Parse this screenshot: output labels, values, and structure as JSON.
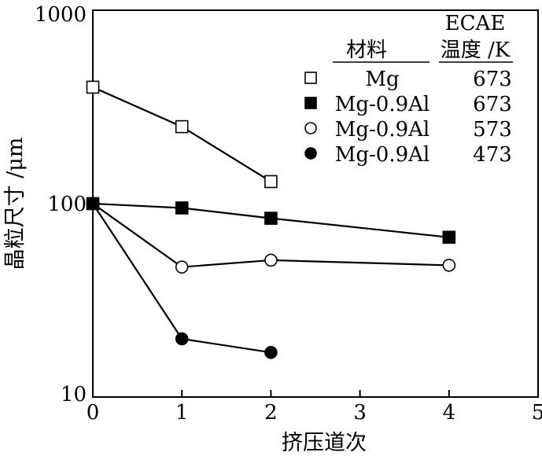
{
  "chart_data": {
    "type": "scatter",
    "title": "",
    "xlabel": "挤压道次",
    "ylabel": "晶粒尺寸 /μm",
    "xlim": [
      0,
      5
    ],
    "ylim": [
      10,
      1000
    ],
    "yscale": "log",
    "grid": false,
    "x_ticks": [
      "0",
      "1",
      "2",
      "3",
      "4",
      "5"
    ],
    "y_ticks": [
      "10",
      "100",
      "1000"
    ],
    "legend": {
      "placement": "top-right",
      "header_material": "材料",
      "header_temp_top": "ECAE",
      "header_temp_bottom": "温度 /K"
    },
    "series": [
      {
        "name": "Mg",
        "temperature": "673",
        "marker": "open-square",
        "x": [
          0,
          1,
          2
        ],
        "y": [
          400,
          250,
          130
        ]
      },
      {
        "name": "Mg-0.9Al",
        "temperature": "673",
        "marker": "filled-square",
        "x": [
          0,
          1,
          2,
          4
        ],
        "y": [
          100,
          95,
          84,
          67
        ]
      },
      {
        "name": "Mg-0.9Al",
        "temperature": "573",
        "marker": "open-circle",
        "x": [
          0,
          1,
          2,
          4
        ],
        "y": [
          100,
          47,
          51,
          48
        ]
      },
      {
        "name": "Mg-0.9Al",
        "temperature": "473",
        "marker": "filled-circle",
        "x": [
          0,
          1,
          2
        ],
        "y": [
          100,
          20,
          17
        ]
      }
    ]
  }
}
